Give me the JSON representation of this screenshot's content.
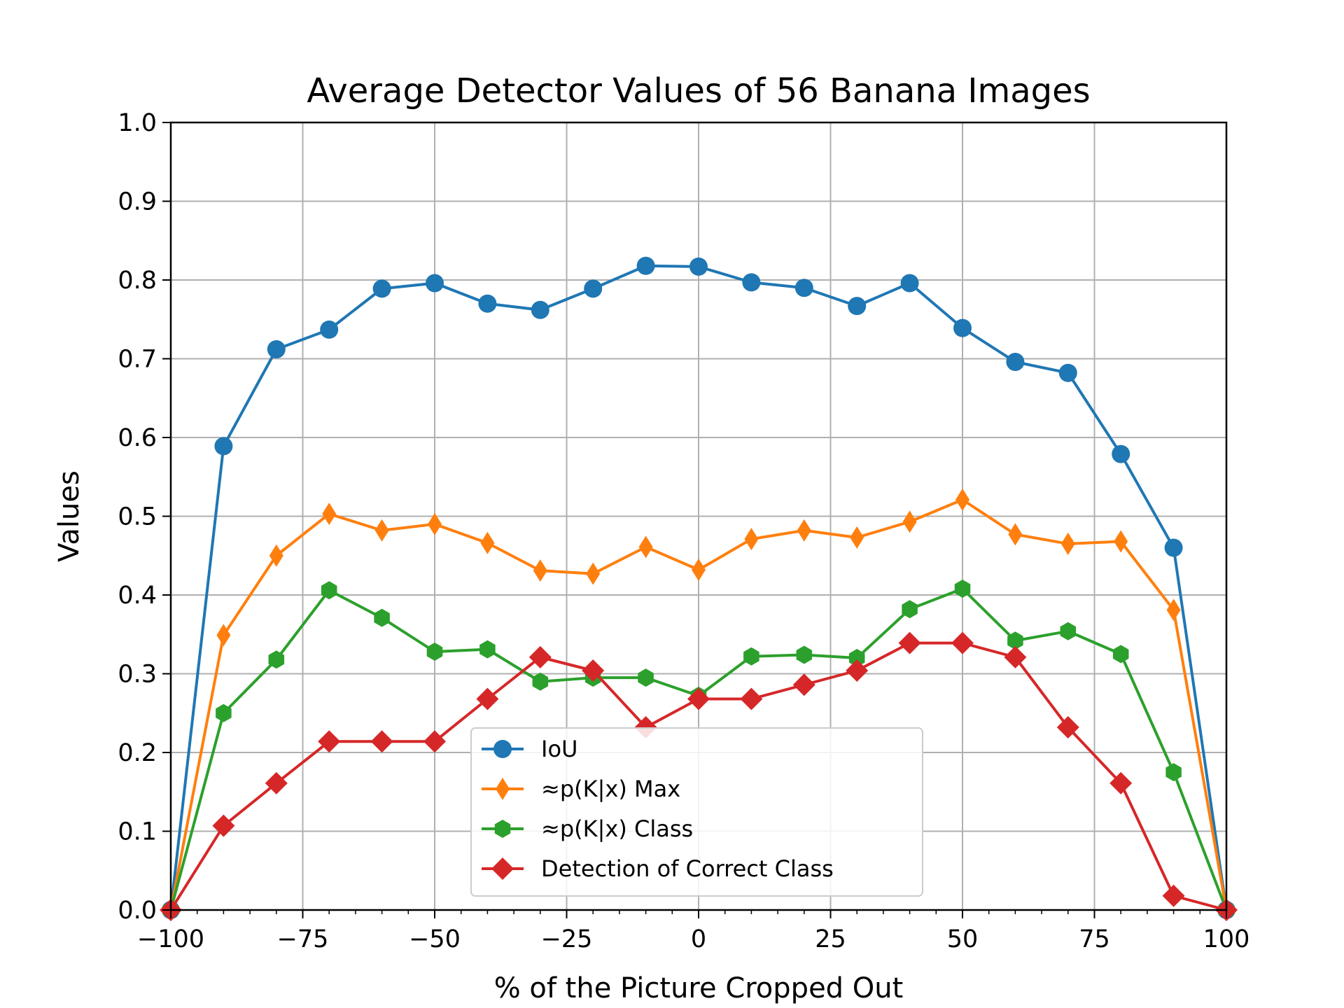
{
  "chart_data": {
    "type": "line",
    "title": "Average Detector Values of 56 Banana Images",
    "xlabel": "% of the Picture Cropped Out",
    "ylabel": "Values",
    "xlim": [
      -100,
      100
    ],
    "ylim": [
      0,
      1.0
    ],
    "xticks": [
      -100,
      -75,
      -50,
      -25,
      0,
      25,
      50,
      75,
      100
    ],
    "xtick_labels": [
      "−100",
      "−75",
      "−50",
      "−25",
      "0",
      "25",
      "50",
      "75",
      "100"
    ],
    "yticks": [
      0,
      0.1,
      0.2,
      0.3,
      0.4,
      0.5,
      0.6,
      0.7,
      0.8,
      0.9,
      1.0
    ],
    "ytick_labels": [
      "0.0",
      "0.1",
      "0.2",
      "0.3",
      "0.4",
      "0.5",
      "0.6",
      "0.7",
      "0.8",
      "0.9",
      "1.0"
    ],
    "grid": true,
    "legend_position": "lower center",
    "x": [
      -100,
      -90,
      -80,
      -70,
      -60,
      -50,
      -40,
      -30,
      -20,
      -10,
      0,
      10,
      20,
      30,
      40,
      50,
      60,
      70,
      80,
      90,
      100
    ],
    "series": [
      {
        "name": "IoU",
        "color": "#1f77b4",
        "marker": "circle",
        "values": [
          0.0,
          0.589,
          0.712,
          0.737,
          0.789,
          0.796,
          0.77,
          0.762,
          0.789,
          0.818,
          0.817,
          0.797,
          0.79,
          0.767,
          0.796,
          0.739,
          0.696,
          0.682,
          0.579,
          0.46,
          0.0
        ]
      },
      {
        "name": "≈p(K|x) Max",
        "color": "#ff7f0e",
        "marker": "thin-diamond",
        "values": [
          0.0,
          0.349,
          0.45,
          0.503,
          0.482,
          0.49,
          0.466,
          0.431,
          0.427,
          0.461,
          0.432,
          0.471,
          0.482,
          0.473,
          0.493,
          0.521,
          0.477,
          0.465,
          0.468,
          0.381,
          0.0
        ]
      },
      {
        "name": "≈p(K|x) Class",
        "color": "#2ca02c",
        "marker": "hexagon",
        "values": [
          0.0,
          0.25,
          0.318,
          0.406,
          0.371,
          0.328,
          0.331,
          0.29,
          0.295,
          0.295,
          0.272,
          0.322,
          0.324,
          0.32,
          0.382,
          0.408,
          0.342,
          0.354,
          0.325,
          0.175,
          0.0
        ]
      },
      {
        "name": "Detection of Correct Class",
        "color": "#d62728",
        "marker": "diamond",
        "values": [
          0.0,
          0.107,
          0.161,
          0.214,
          0.214,
          0.214,
          0.268,
          0.321,
          0.304,
          0.232,
          0.268,
          0.268,
          0.286,
          0.304,
          0.339,
          0.339,
          0.321,
          0.232,
          0.161,
          0.018,
          0.0
        ]
      }
    ]
  }
}
